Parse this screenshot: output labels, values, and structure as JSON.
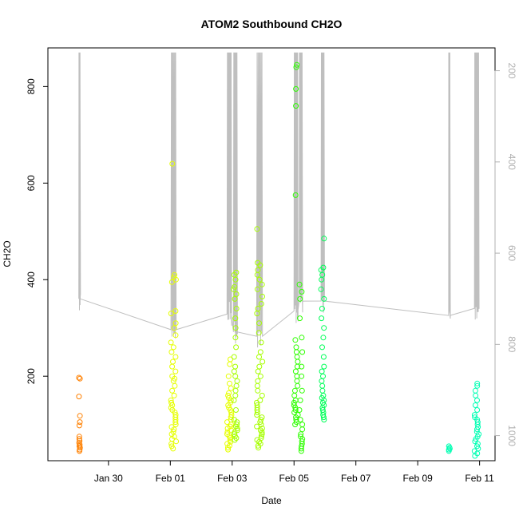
{
  "chart_data": {
    "type": "scatter",
    "title": "ATOM2 Southbound CH2O",
    "xlabel": "Date",
    "ylabel": "CH2O",
    "x_ticks": [
      "Jan 30",
      "Feb 01",
      "Feb 03",
      "Feb 05",
      "Feb 07",
      "Feb 09",
      "Feb 11"
    ],
    "y_ticks": [
      "200",
      "400",
      "600",
      "800"
    ],
    "y2_ticks": [
      "200",
      "400",
      "600",
      "800",
      "1000"
    ],
    "xlim": [
      "2017-01-28T01:00",
      "2017-02-11T12:00"
    ],
    "ylim": [
      25,
      880
    ],
    "y2lim": [
      1055,
      150
    ],
    "y2_direction": "reversed",
    "grid": false,
    "legend": "none",
    "colors": {
      "orange": "#ff8000",
      "yellow": "#e6ff00",
      "lime": "#a6ff00",
      "green": "#2eff00",
      "teal": "#00ff59",
      "cyan": "#00ffb3",
      "line": "#bfbfbf"
    },
    "series": [
      {
        "date": "2017-01-29",
        "color": "orange",
        "times": [
          [
            "01:00",
            "02:00"
          ]
        ],
        "points": [
          45,
          48,
          52,
          55,
          58,
          62,
          66,
          70,
          75,
          98,
          105,
          118,
          158,
          195,
          197
        ]
      },
      {
        "date": "2017-02-01",
        "color": "yellow",
        "times": [
          [
            "00:30",
            "04:30"
          ]
        ],
        "points": [
          50,
          55,
          60,
          65,
          70,
          75,
          80,
          85,
          90,
          95,
          100,
          105,
          110,
          115,
          120,
          125,
          130,
          135,
          140,
          145,
          150,
          160,
          170,
          180,
          190,
          195,
          200,
          210,
          220,
          230,
          240,
          250,
          260,
          270,
          285,
          300,
          310,
          330,
          335,
          395,
          400,
          405,
          410,
          640
        ]
      },
      {
        "date": "2017-02-02",
        "color": "yellow",
        "times": [
          [
            "20:00",
            "23:30"
          ]
        ],
        "points": [
          48,
          52,
          56,
          60,
          64,
          68,
          72,
          76,
          80,
          84,
          88,
          92,
          96,
          100,
          105,
          110,
          115,
          120,
          125,
          130,
          135,
          140,
          145,
          150,
          155,
          160,
          165,
          175,
          185,
          200,
          225,
          235
        ]
      },
      {
        "date": "2017-02-03",
        "color": "lime",
        "times": [
          [
            "01:00",
            "04:00"
          ]
        ],
        "points": [
          68,
          72,
          76,
          80,
          84,
          88,
          92,
          96,
          100,
          105,
          110,
          130,
          150,
          160,
          170,
          180,
          190,
          200,
          210,
          220,
          240,
          260,
          280,
          300,
          320,
          340,
          360,
          370,
          380,
          385,
          400,
          410,
          415
        ]
      },
      {
        "date": "2017-02-03",
        "color": "lime",
        "times": [
          [
            "19:00",
            "23:30"
          ]
        ],
        "points": [
          52,
          56,
          60,
          64,
          68,
          72,
          76,
          80,
          84,
          88,
          92,
          96,
          100,
          105,
          110,
          115,
          120,
          125,
          130,
          135,
          140,
          145,
          150,
          160,
          170,
          180,
          190,
          200,
          210,
          220,
          230,
          240,
          250,
          270,
          290,
          310,
          330,
          340,
          350,
          365,
          380,
          390,
          400,
          410,
          420,
          430,
          435,
          505
        ]
      },
      {
        "date": "2017-02-05",
        "color": "green",
        "times": [
          [
            "00:00",
            "03:00"
          ]
        ],
        "points": [
          100,
          105,
          110,
          115,
          120,
          125,
          130,
          135,
          140,
          145,
          150,
          160,
          170,
          180,
          190,
          200,
          210,
          220,
          230,
          240,
          250,
          260,
          275,
          575,
          760,
          795,
          840,
          845
        ]
      },
      {
        "date": "2017-02-05",
        "color": "green",
        "times": [
          [
            "04:00",
            "06:30"
          ]
        ],
        "points": [
          45,
          50,
          55,
          60,
          65,
          70,
          75,
          80,
          90,
          100,
          110,
          130,
          150,
          170,
          200,
          220,
          250,
          280,
          320,
          360,
          375,
          390
        ]
      },
      {
        "date": "2017-02-05",
        "color": "teal",
        "times": [
          [
            "21:00",
            "23:30"
          ]
        ],
        "points": [
          110,
          115,
          120,
          125,
          130,
          135,
          140,
          145,
          150,
          155,
          160,
          170,
          180,
          190,
          200,
          210,
          220,
          240,
          260,
          280,
          300,
          320,
          340,
          360,
          380,
          400,
          410,
          420,
          425,
          485
        ]
      },
      {
        "date": "2017-02-10",
        "color": "cyan",
        "times": [
          [
            "00:00",
            "01:00"
          ]
        ],
        "points": [
          45,
          48,
          50,
          52,
          55
        ]
      },
      {
        "date": "2017-02-10",
        "color": "cyan",
        "times": [
          [
            "20:00",
            "23:30"
          ]
        ],
        "points": [
          35,
          40,
          45,
          50,
          55,
          60,
          65,
          70,
          75,
          80,
          85,
          90,
          95,
          100,
          105,
          110,
          115,
          120,
          130,
          140,
          150,
          160,
          170,
          180,
          185
        ]
      }
    ]
  }
}
